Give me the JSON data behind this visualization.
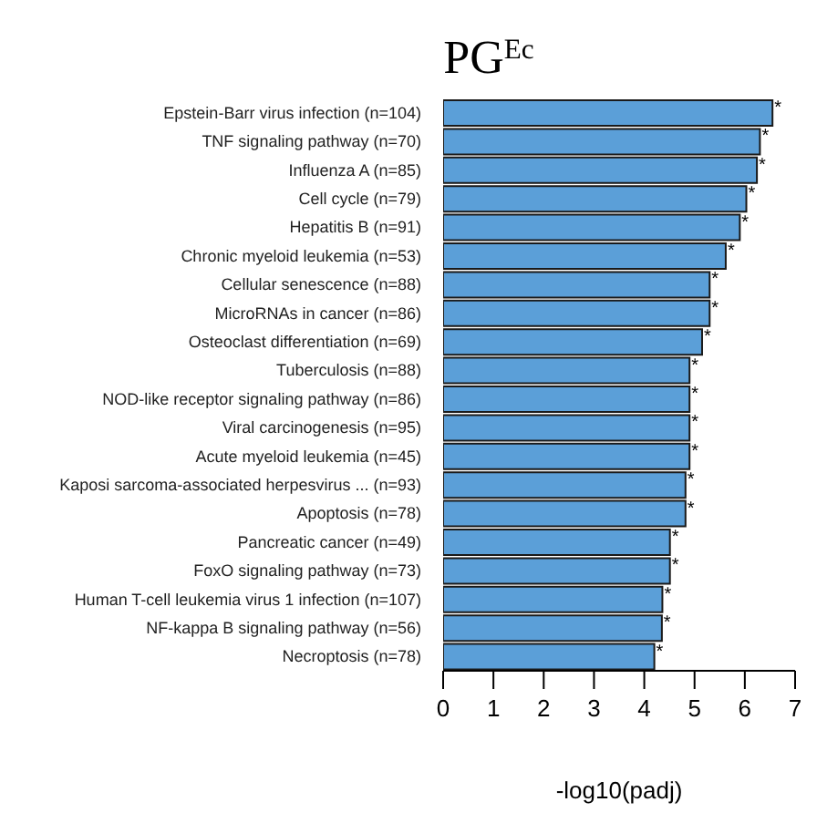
{
  "chart_data": {
    "type": "bar",
    "orientation": "horizontal",
    "title": "PG$^{Ec}$",
    "xlabel": "-log10(padj)",
    "categories": [
      "Epstein-Barr virus infection (n=104)",
      "TNF signaling pathway (n=70)",
      "Influenza A (n=85)",
      "Cell cycle (n=79)",
      "Hepatitis B (n=91)",
      "Chronic myeloid leukemia (n=53)",
      "Cellular senescence (n=88)",
      "MicroRNAs in cancer (n=86)",
      "Osteoclast differentiation (n=69)",
      "Tuberculosis (n=88)",
      "NOD-like receptor signaling pathway (n=86)",
      "Viral carcinogenesis (n=95)",
      "Acute myeloid leukemia (n=45)",
      "Kaposi sarcoma-associated herpesvirus ... (n=93)",
      "Apoptosis (n=78)",
      "Pancreatic cancer (n=49)",
      "FoxO signaling pathway (n=73)",
      "Human T-cell leukemia virus 1 infection (n=107)",
      "NF-kappa B signaling pathway (n=56)",
      "Necroptosis (n=78)"
    ],
    "values": [
      6.55,
      6.3,
      6.24,
      6.03,
      5.9,
      5.62,
      5.3,
      5.3,
      5.15,
      4.9,
      4.9,
      4.9,
      4.9,
      4.82,
      4.82,
      4.51,
      4.51,
      4.36,
      4.35,
      4.2
    ],
    "color": "#5b9fd8",
    "xlim": [
      0,
      7
    ],
    "xticks": [
      0,
      1,
      2,
      3,
      4,
      5,
      6,
      7
    ],
    "grid": false,
    "annotations": [
      {
        "text": "*",
        "x": 6.55,
        "y": "Epstein-Barr virus infection (n=104)"
      },
      {
        "text": "*",
        "x": 6.3,
        "y": "TNF signaling pathway (n=70)"
      },
      {
        "text": "*",
        "x": 6.24,
        "y": "Influenza A (n=85)"
      },
      {
        "text": "*",
        "x": 6.03,
        "y": "Cell cycle (n=79)"
      },
      {
        "text": "*",
        "x": 5.9,
        "y": "Hepatitis B (n=91)"
      },
      {
        "text": "*",
        "x": 5.62,
        "y": "Chronic myeloid leukemia (n=53)"
      },
      {
        "text": "*",
        "x": 5.3,
        "y": "Cellular senescence (n=88)"
      },
      {
        "text": "*",
        "x": 5.3,
        "y": "MicroRNAs in cancer (n=86)"
      },
      {
        "text": "*",
        "x": 5.15,
        "y": "Osteoclast differentiation (n=69)"
      },
      {
        "text": "*",
        "x": 4.9,
        "y": "Tuberculosis (n=88)"
      },
      {
        "text": "*",
        "x": 4.9,
        "y": "NOD-like receptor signaling pathway (n=86)"
      },
      {
        "text": "*",
        "x": 4.9,
        "y": "Viral carcinogenesis (n=95)"
      },
      {
        "text": "*",
        "x": 4.9,
        "y": "Acute myeloid leukemia (n=45)"
      },
      {
        "text": "*",
        "x": 4.82,
        "y": "Kaposi sarcoma-associated herpesvirus ... (n=93)"
      },
      {
        "text": "*",
        "x": 4.82,
        "y": "Apoptosis (n=78)"
      },
      {
        "text": "*",
        "x": 4.51,
        "y": "Pancreatic cancer (n=49)"
      },
      {
        "text": "*",
        "x": 4.51,
        "y": "FoxO signaling pathway (n=73)"
      },
      {
        "text": "*",
        "x": 4.36,
        "y": "Human T-cell leukemia virus 1 infection (n=107)"
      },
      {
        "text": "*",
        "x": 4.35,
        "y": "NF-kappa B signaling pathway (n=56)"
      },
      {
        "text": "*",
        "x": 4.2,
        "y": "Necroptosis (n=78)"
      }
    ]
  }
}
